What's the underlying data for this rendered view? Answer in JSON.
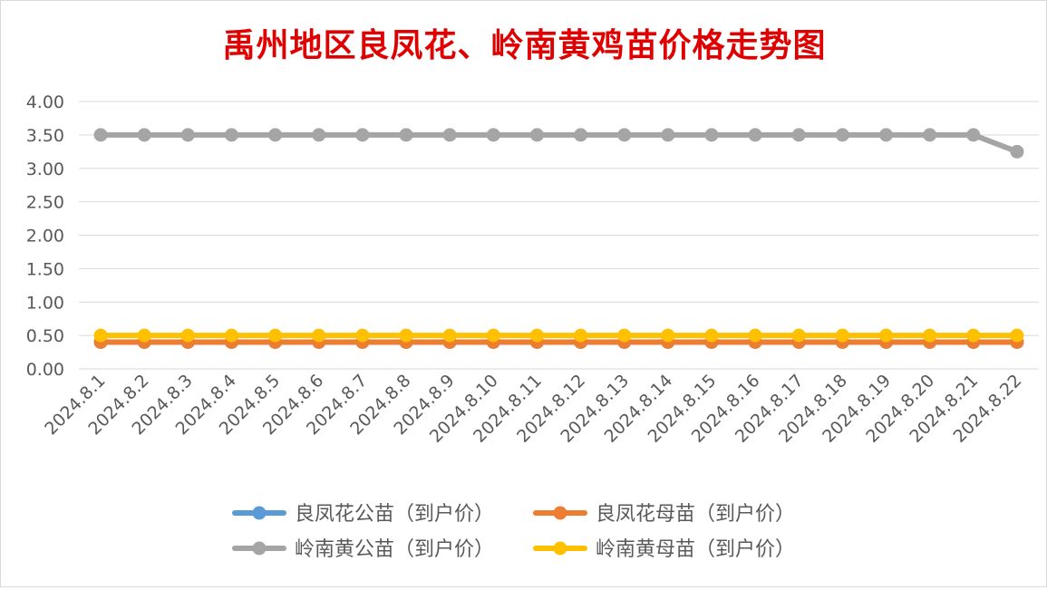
{
  "chart_data": {
    "type": "line",
    "title": "禹州地区良凤花、岭南黄鸡苗价格走势图",
    "title_color": "#e00000",
    "xlabel": "",
    "ylabel": "",
    "categories": [
      "2024.8.1",
      "2024.8.2",
      "2024.8.3",
      "2024.8.4",
      "2024.8.5",
      "2024.8.6",
      "2024.8.7",
      "2024.8.8",
      "2024.8.9",
      "2024.8.10",
      "2024.8.11",
      "2024.8.12",
      "2024.8.13",
      "2024.8.14",
      "2024.8.15",
      "2024.8.16",
      "2024.8.17",
      "2024.8.18",
      "2024.8.19",
      "2024.8.20",
      "2024.8.21",
      "2024.8.22"
    ],
    "ylim": [
      0,
      4
    ],
    "yticks": [
      "0.00",
      "0.50",
      "1.00",
      "1.50",
      "2.00",
      "2.50",
      "3.00",
      "3.50",
      "4.00"
    ],
    "grid": true,
    "legend_position": "bottom",
    "series": [
      {
        "name": "良凤花公苗（到户价）",
        "color": "#5b9bd5",
        "values": [
          0.4,
          0.4,
          0.4,
          0.4,
          0.4,
          0.4,
          0.4,
          0.4,
          0.4,
          0.4,
          0.4,
          0.4,
          0.4,
          0.4,
          0.4,
          0.4,
          0.4,
          0.4,
          0.4,
          0.4,
          0.4,
          0.4
        ]
      },
      {
        "name": "良凤花母苗（到户价）",
        "color": "#ed7d31",
        "values": [
          0.4,
          0.4,
          0.4,
          0.4,
          0.4,
          0.4,
          0.4,
          0.4,
          0.4,
          0.4,
          0.4,
          0.4,
          0.4,
          0.4,
          0.4,
          0.4,
          0.4,
          0.4,
          0.4,
          0.4,
          0.4,
          0.4
        ]
      },
      {
        "name": "岭南黄公苗（到户价）",
        "color": "#a5a5a5",
        "values": [
          3.5,
          3.5,
          3.5,
          3.5,
          3.5,
          3.5,
          3.5,
          3.5,
          3.5,
          3.5,
          3.5,
          3.5,
          3.5,
          3.5,
          3.5,
          3.5,
          3.5,
          3.5,
          3.5,
          3.5,
          3.5,
          3.25
        ]
      },
      {
        "name": "岭南黄母苗（到户价）",
        "color": "#ffc000",
        "values": [
          0.5,
          0.5,
          0.5,
          0.5,
          0.5,
          0.5,
          0.5,
          0.5,
          0.5,
          0.5,
          0.5,
          0.5,
          0.5,
          0.5,
          0.5,
          0.5,
          0.5,
          0.5,
          0.5,
          0.5,
          0.5,
          0.5
        ]
      }
    ]
  }
}
